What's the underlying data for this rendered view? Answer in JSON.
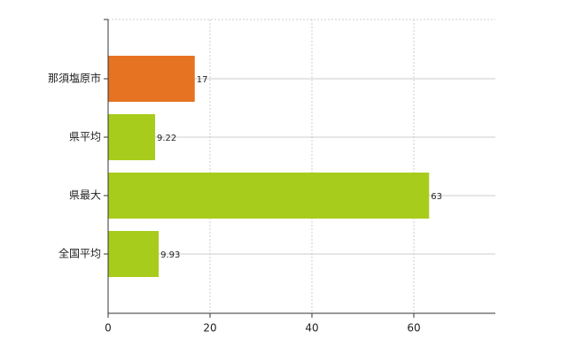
{
  "chart_data": {
    "type": "bar",
    "orientation": "horizontal",
    "categories": [
      "那須塩原市",
      "県平均",
      "県最大",
      "全国平均"
    ],
    "values": [
      17,
      9.22,
      63,
      9.93
    ],
    "colors": [
      "#e67322",
      "#a8cc1c",
      "#a8cc1c",
      "#a8cc1c"
    ],
    "xlim": [
      0,
      76
    ],
    "xticks": [
      0,
      20,
      40,
      60
    ],
    "grid": true
  }
}
